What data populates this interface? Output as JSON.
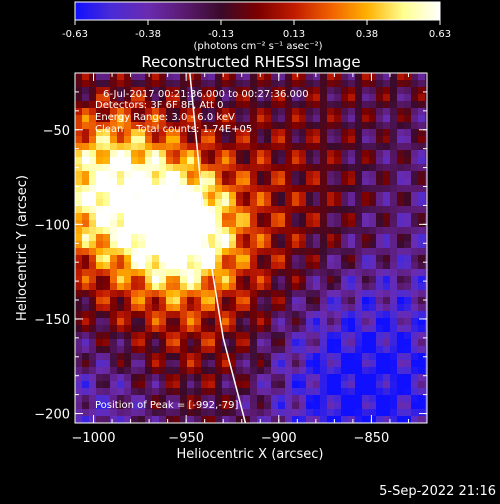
{
  "chart_data": {
    "type": "heatmap",
    "title": "Reconstructed RHESSI Image",
    "xlabel": "Heliocentric X (arcsec)",
    "ylabel": "Heliocentric Y (arcsec)",
    "xlim": [
      -1010,
      -820
    ],
    "ylim": [
      -205,
      -20
    ],
    "xticks": [
      -1000,
      -950,
      -900,
      -850
    ],
    "yticks": [
      -50,
      -100,
      -150,
      -200
    ],
    "colorbar": {
      "range": [
        -0.63,
        0.63
      ],
      "ticks": [
        "-0.63",
        "-0.38",
        "-0.13",
        "0.13",
        "0.38",
        "0.63"
      ],
      "unit_label": "(photons cm⁻² s⁻¹ asec⁻²)"
    },
    "annotations": [
      "6-Jul-2017 00:21:36.000 to 00:27:36.000",
      "Detectors: 3F 6F 8F, Att 0",
      "Energy Range: 3.0 - 6.0 keV",
      "Clean    Total counts: 1.74E+05"
    ],
    "peak_label": "Position of Peak = [-992,-79]",
    "peaks": [
      {
        "x": -992,
        "y": -79,
        "value": 0.63
      },
      {
        "x": -952,
        "y": -103,
        "value": 0.55
      }
    ],
    "limb_curve": [
      [
        -948,
        -20
      ],
      [
        -940,
        -100
      ],
      [
        -930,
        -160
      ],
      [
        -918,
        -205
      ]
    ],
    "footer": "5-Sep-2022 21:16",
    "palette": [
      "#1010ff",
      "#4a2bd6",
      "#6a2bb0",
      "#5a1a70",
      "#3a0a2a",
      "#7a0000",
      "#c01a00",
      "#f06000",
      "#ffb000",
      "#ffff90",
      "#ffffff"
    ]
  }
}
